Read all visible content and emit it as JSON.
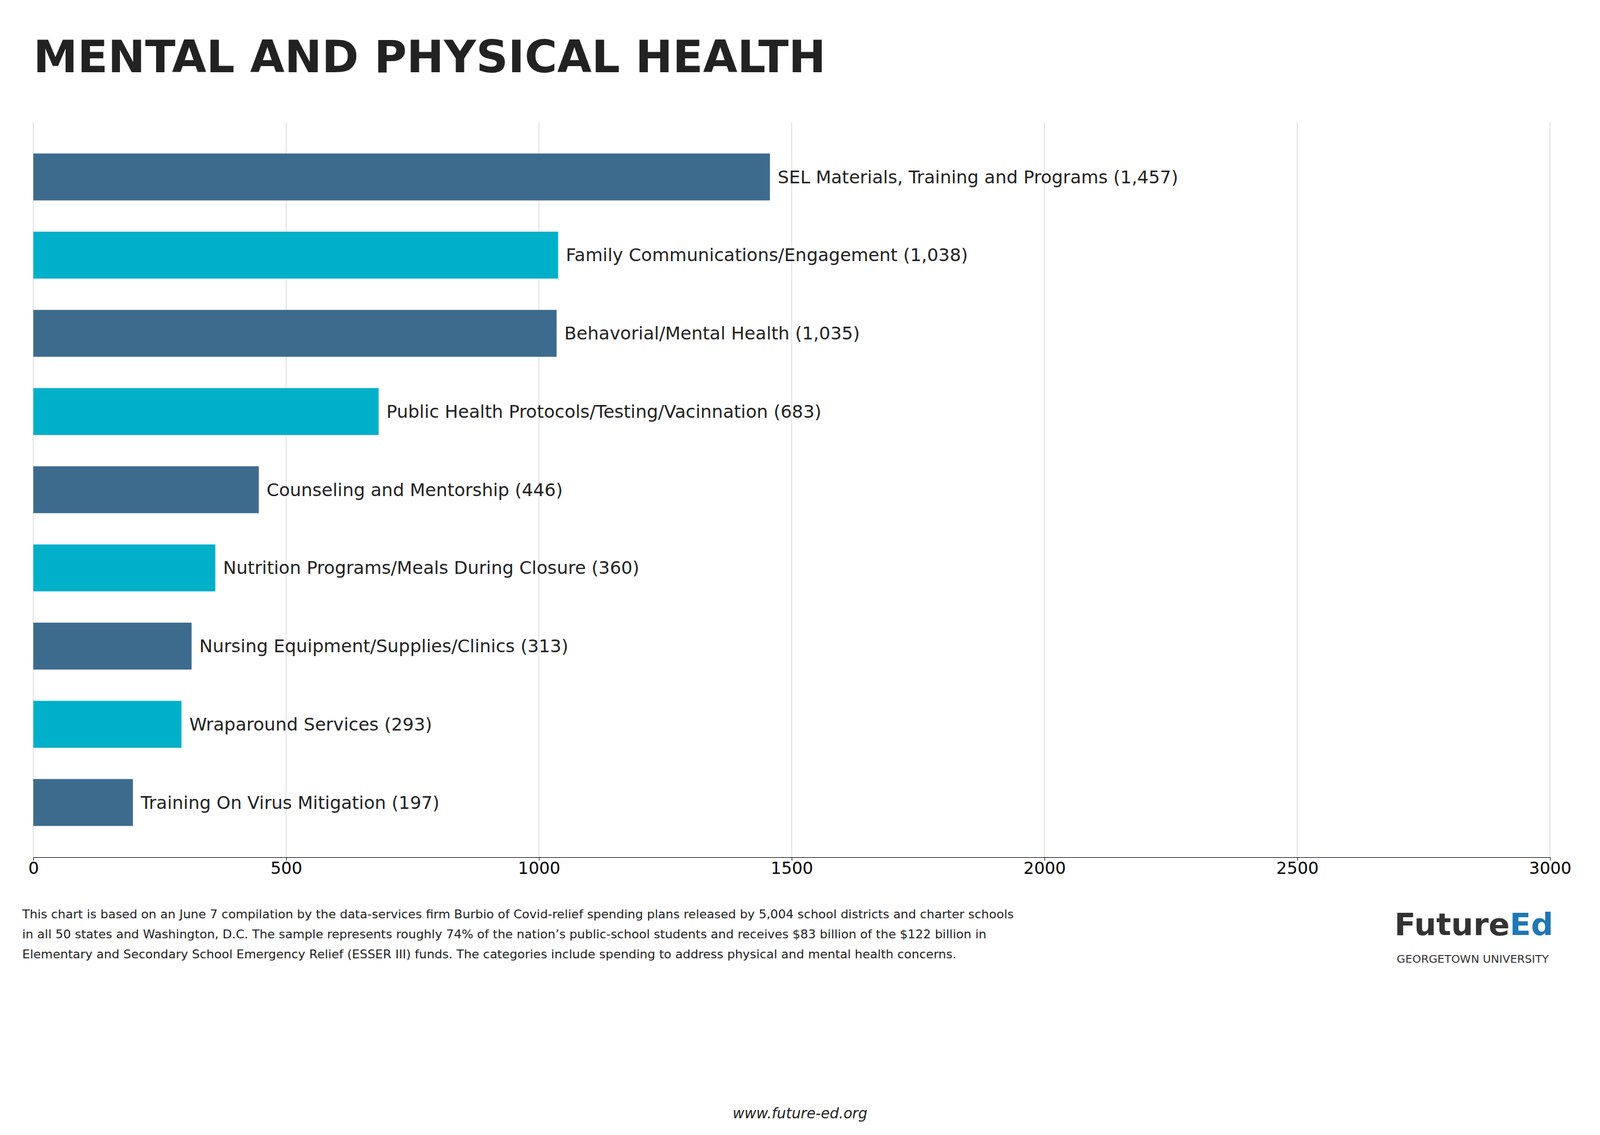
{
  "chart_data": {
    "type": "bar",
    "orientation": "horizontal",
    "title": "MENTAL AND PHYSICAL HEALTH",
    "categories": [
      "SEL Materials, Training and Programs (1,457)",
      "Family Communications/Engagement (1,038)",
      "Behavorial/Mental Health (1,035)",
      "Public Health Protocols/Testing/Vacinnation (683)",
      "Counseling and Mentorship (446)",
      "Nutrition Programs/Meals During Closure (360)",
      "Nursing Equipment/Supplies/Clinics (313)",
      "Wraparound Services (293)",
      "Training On Virus Mitigation (197)"
    ],
    "values": [
      1457,
      1038,
      1035,
      683,
      446,
      360,
      313,
      293,
      197
    ],
    "colors": [
      "#3d6b8e",
      "#00b0c8",
      "#3d6b8e",
      "#00b0c8",
      "#3d6b8e",
      "#00b0c8",
      "#3d6b8e",
      "#00b0c8",
      "#3d6b8e"
    ],
    "xlim": [
      0,
      3000
    ],
    "xticks": [
      0,
      500,
      1000,
      1500,
      2000,
      2500,
      3000
    ],
    "grid": true,
    "annotations": [
      "This chart is based on an June 7 compilation by the data-services firm Burbio of Covid-relief spending plans released by 5,004 school districts and charter schools\nin all 50 states and Washington, D.C. The sample represents roughly 74% of the nation’s public-school students and receives $83 billion of the $122 billion in\nElementary and Secondary School Emergency Relief (ESSER III) funds. The categories include spending to address physical and mental health concerns.",
      "www.future-ed.org",
      "Future",
      "Ed",
      "GEORGETOWN UNIVERSITY"
    ]
  }
}
